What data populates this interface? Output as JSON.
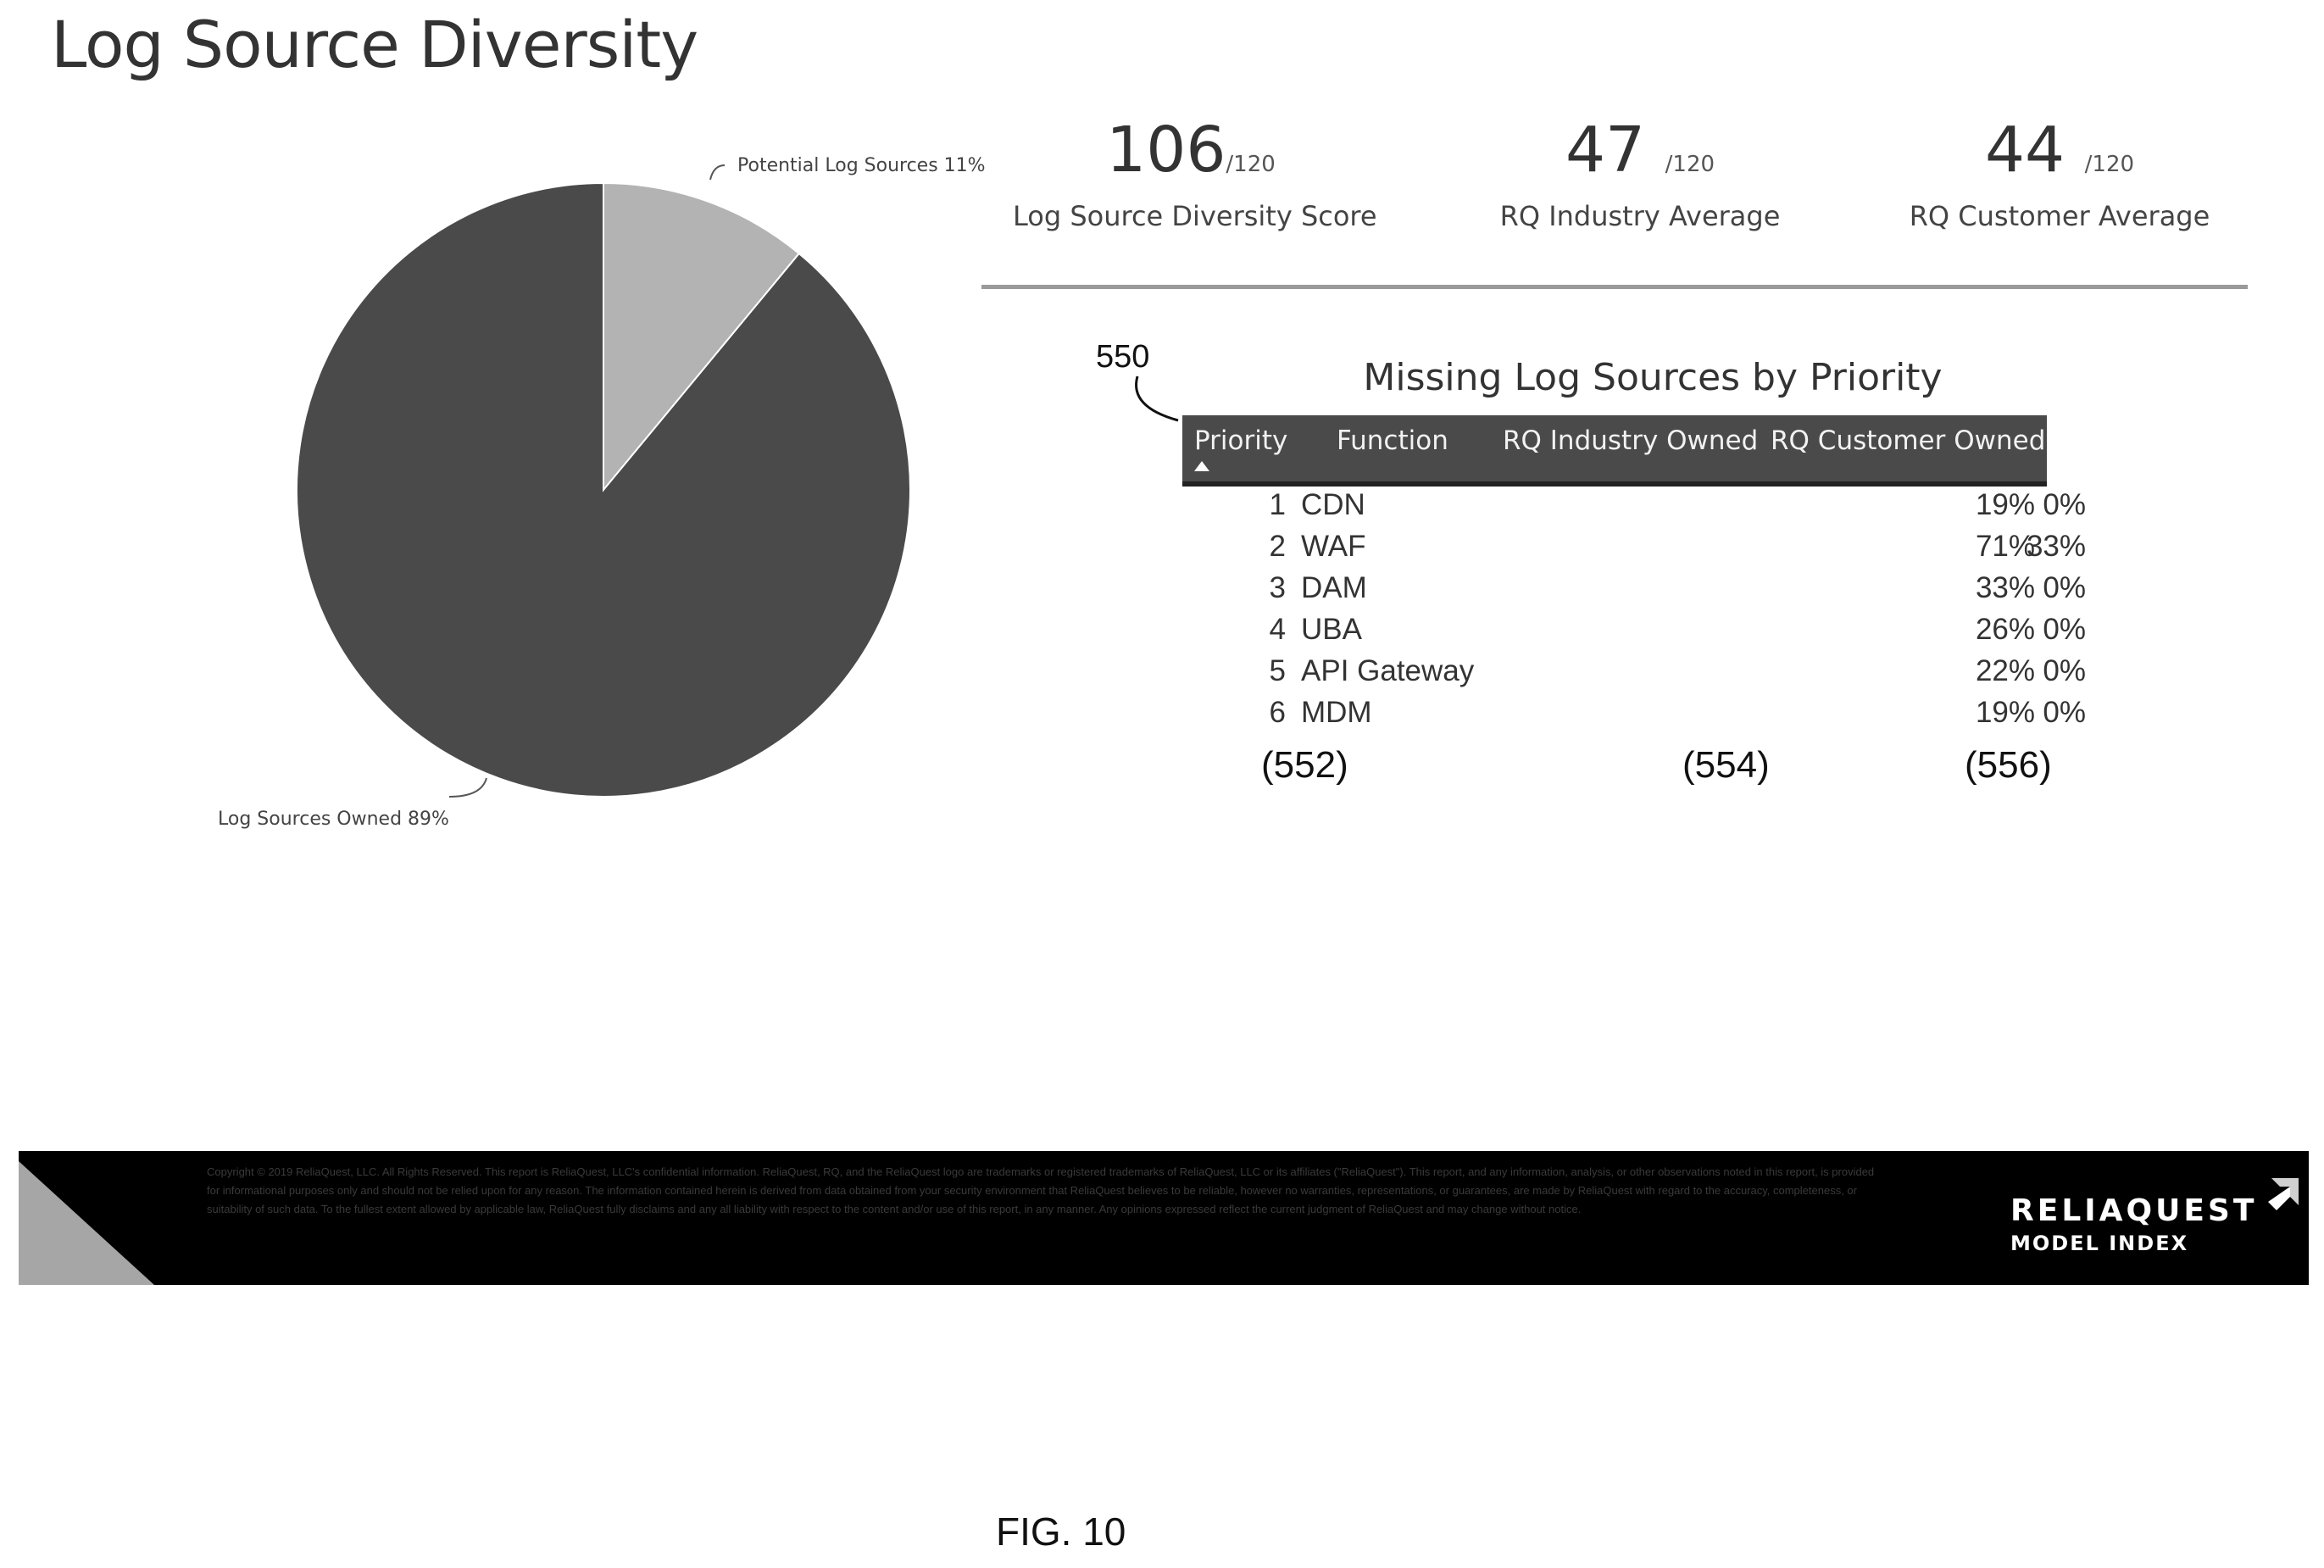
{
  "title": "Log Source Diversity",
  "chart_data": {
    "type": "pie",
    "slices": [
      {
        "label": "Potential Log Sources 11%",
        "value": 11,
        "color": "#b3b3b3"
      },
      {
        "label": "Log Sources Owned 89%",
        "value": 89,
        "color": "#4a4a4a"
      }
    ]
  },
  "kpis": [
    {
      "value": "106",
      "max": "/120",
      "label": "Log Source Diversity Score"
    },
    {
      "value": "47",
      "max": "/120",
      "label": "RQ Industry Average"
    },
    {
      "value": "44",
      "max": "/120",
      "label": "RQ Customer Average"
    }
  ],
  "table": {
    "ref": "550",
    "title": "Missing Log Sources by Priority",
    "headers": {
      "priority": "Priority",
      "function": "Function",
      "industry": "RQ Industry Owned",
      "customer": "RQ Customer Owned"
    },
    "rows": [
      {
        "priority": "1",
        "function": "CDN",
        "industry": "0%",
        "customer": "19%"
      },
      {
        "priority": "2",
        "function": "WAF",
        "industry": "33%",
        "customer": "71%"
      },
      {
        "priority": "3",
        "function": "DAM",
        "industry": "0%",
        "customer": "33%"
      },
      {
        "priority": "4",
        "function": "UBA",
        "industry": "0%",
        "customer": "26%"
      },
      {
        "priority": "5",
        "function": "API Gateway",
        "industry": "0%",
        "customer": "22%"
      },
      {
        "priority": "6",
        "function": "MDM",
        "industry": "0%",
        "customer": "19%"
      }
    ],
    "refs": [
      "(552)",
      "(554)",
      "(556)"
    ]
  },
  "footer": {
    "brand_name": "RELIAQUEST",
    "brand_sub": "MODEL INDEX",
    "text": "Copyright © 2019 ReliaQuest, LLC. All Rights Reserved. This report is ReliaQuest, LLC's confidential information. ReliaQuest, RQ, and the ReliaQuest logo are trademarks or registered trademarks of ReliaQuest, LLC or its affiliates (\"ReliaQuest\"). This report, and any information, analysis, or other observations noted in this report, is provided for informational purposes only and should not be relied upon for any reason. The information contained herein is derived from data obtained from your security environment that ReliaQuest believes to be reliable, however no warranties, representations, or guarantees, are made by ReliaQuest with regard to the accuracy, completeness, or suitability of such data. To the fullest extent allowed by applicable law, ReliaQuest fully disclaims and any all liability with respect to the content and/or use of this report, in any manner. Any opinions expressed reflect the current judgment of ReliaQuest and may change without notice."
  },
  "figure_label": "FIG. 10"
}
